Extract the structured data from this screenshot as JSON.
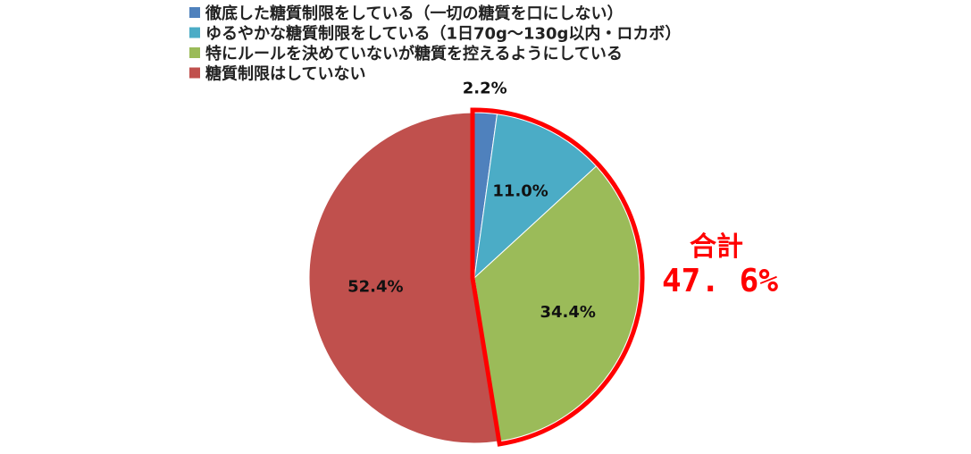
{
  "chart_data": {
    "type": "pie",
    "categories": [
      "徹底した糖質制限をしている（一切の糖質を口にしない）",
      "ゆるやかな糖質制限をしている（1日70g～130g以内・ロカボ）",
      "特にルールを決めていないが糖質を控えるようにしている",
      "糖質制限はしていない"
    ],
    "values": [
      2.2,
      11.0,
      34.4,
      52.4
    ],
    "data_labels": [
      "2.2%",
      "11.0%",
      "34.4%",
      "52.4%"
    ],
    "colors": [
      "#4f81bd",
      "#4bacc6",
      "#9bbb59",
      "#c0504d"
    ],
    "legend_position": "top-left",
    "start_angle": "12 o'clock",
    "direction": "clockwise",
    "callout": {
      "label": "合計",
      "value": "47.6%",
      "value_display": "47. 6%",
      "highlighted_categories": [
        0,
        1,
        2
      ],
      "color": "#ff0000"
    }
  }
}
